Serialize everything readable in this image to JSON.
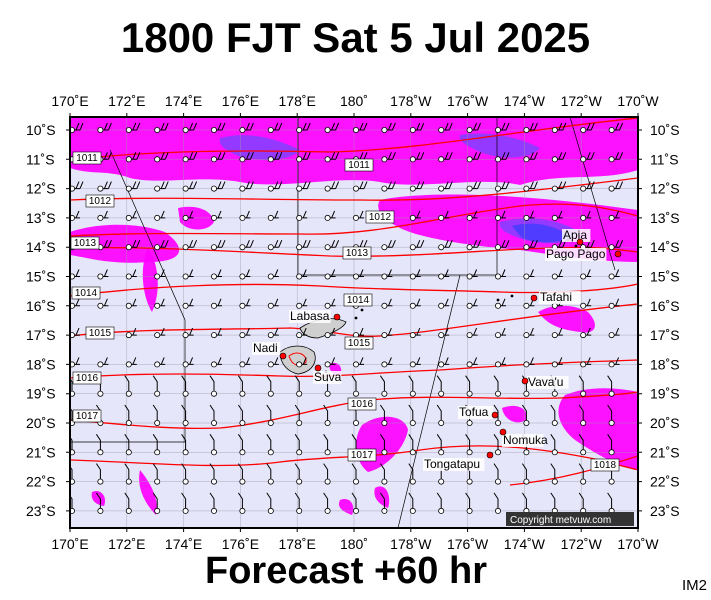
{
  "title": "1800 FJT Sat 5 Jul 2025",
  "footer": "Forecast +60 hr",
  "image_code": "IM2",
  "copyright": "Copyright metvuw.com",
  "longitude_labels": [
    "170˚E",
    "172˚E",
    "174˚E",
    "176˚E",
    "178˚E",
    "180˚",
    "178˚W",
    "176˚W",
    "174˚W",
    "172˚W",
    "170˚W"
  ],
  "latitude_labels": [
    "10˚S",
    "11˚S",
    "12˚S",
    "13˚S",
    "14˚S",
    "15˚S",
    "16˚S",
    "17˚S",
    "18˚S",
    "19˚S",
    "20˚S",
    "21˚S",
    "22˚S",
    "23˚S"
  ],
  "places": [
    {
      "name": "Apia"
    },
    {
      "name": "Pago Pago"
    },
    {
      "name": "Tafahi"
    },
    {
      "name": "Labasa"
    },
    {
      "name": "Nadi"
    },
    {
      "name": "Suva"
    },
    {
      "name": "Vava'u"
    },
    {
      "name": "Tofua"
    },
    {
      "name": "Nomuka"
    },
    {
      "name": "Tongatapu"
    }
  ],
  "isobar_labels": [
    "1011",
    "1011",
    "1012",
    "1012",
    "1013",
    "1013",
    "1014",
    "1014",
    "1015",
    "1015",
    "1016",
    "1016",
    "1017",
    "1017",
    "1018"
  ],
  "colors": {
    "ocean": "#e6e6fa",
    "rain_magenta": "#ff00ff",
    "rain_violet": "#8b3dff",
    "rain_blue": "#4a3dff",
    "isobar": "#ff0000",
    "land": "#cfcfcf",
    "town_dot": "#ff0000"
  }
}
